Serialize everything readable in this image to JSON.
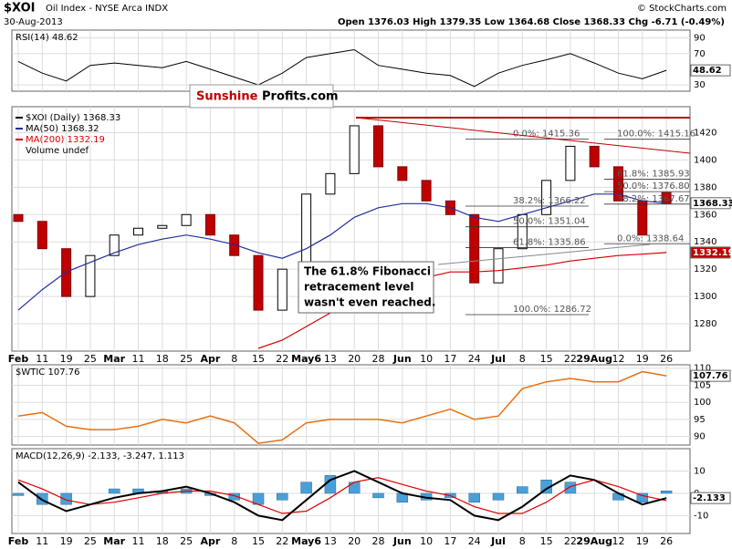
{
  "header": {
    "symbol": "$XOI",
    "name": "Oil Index - NYSE Arca INDX",
    "date": "30-Aug-2013",
    "quote": "Open 1376.03  High 1379.35  Low 1364.68  Close 1368.33  Chg -6.71 (-0.49%)",
    "credit": "© StockCharts.com",
    "logo_left": "Sunshine",
    "logo_right": "Profits.com",
    "annotation": [
      "The 61.8% Fibonacci",
      "retracement level",
      "wasn't even reached."
    ]
  },
  "chart_data": [
    {
      "type": "line",
      "title": "RSI(14) 48.62",
      "categories": [
        "Feb",
        "11",
        "19",
        "25",
        "Mar",
        "11",
        "18",
        "25",
        "Apr",
        "8",
        "15",
        "22",
        "May6",
        "13",
        "20",
        "28",
        "Jun",
        "10",
        "17",
        "24",
        "Jul",
        "8",
        "15",
        "22",
        "29Aug",
        "12",
        "19",
        "26"
      ],
      "values": [
        60,
        45,
        35,
        55,
        58,
        55,
        52,
        60,
        50,
        40,
        30,
        45,
        65,
        70,
        75,
        55,
        50,
        45,
        42,
        28,
        45,
        55,
        62,
        70,
        58,
        45,
        38,
        48.62
      ],
      "color": "#000000",
      "ylim": [
        22,
        100
      ],
      "yticks": [
        30,
        70,
        90
      ]
    },
    {
      "type": "candlestick",
      "categories": [
        "Feb",
        "11",
        "19",
        "25",
        "Mar",
        "11",
        "18",
        "25",
        "Apr",
        "8",
        "15",
        "22",
        "May6",
        "13",
        "20",
        "28",
        "Jun",
        "10",
        "17",
        "24",
        "Jul",
        "8",
        "15",
        "22",
        "29Aug",
        "12",
        "19",
        "26"
      ],
      "series": [
        {
          "name": "$XOI (Daily) 1368.33",
          "color": "#000000",
          "open": [
            1360,
            1355,
            1335,
            1300,
            1330,
            1345,
            1350,
            1352,
            1360,
            1345,
            1330,
            1290,
            1320,
            1375,
            1390,
            1425,
            1395,
            1385,
            1370,
            1360,
            1310,
            1335,
            1360,
            1385,
            1410,
            1395,
            1370,
            1376.03
          ],
          "close": [
            1355,
            1335,
            1300,
            1330,
            1345,
            1350,
            1352,
            1360,
            1345,
            1330,
            1290,
            1320,
            1375,
            1390,
            1425,
            1395,
            1385,
            1370,
            1360,
            1310,
            1335,
            1360,
            1385,
            1410,
            1395,
            1370,
            1345,
            1368.33
          ]
        },
        {
          "name": "MA(50) 1368.32",
          "color": "#1f2f9f",
          "values": [
            1290,
            1305,
            1318,
            1325,
            1332,
            1338,
            1342,
            1345,
            1342,
            1338,
            1332,
            1328,
            1335,
            1345,
            1358,
            1365,
            1368,
            1368,
            1365,
            1358,
            1355,
            1360,
            1365,
            1370,
            1375,
            1375,
            1370,
            1368.32
          ]
        },
        {
          "name": "MA(200) 1332.19",
          "color": "#d40000",
          "values": [
            null,
            null,
            null,
            null,
            null,
            null,
            null,
            null,
            null,
            null,
            1262,
            1268,
            1278,
            1288,
            1298,
            1305,
            1310,
            1314,
            1318,
            1318,
            1319,
            1321,
            1323,
            1326,
            1328,
            1330,
            1331,
            1332.19
          ]
        }
      ],
      "note": "Volume undef",
      "fib_left": [
        {
          "label": "0.0%: 1415.36",
          "value": 1415.36
        },
        {
          "label": "38.2%: 1366.22",
          "value": 1366.22
        },
        {
          "label": "50.0%: 1351.04",
          "value": 1351.04
        },
        {
          "label": "61.8%: 1335.86",
          "value": 1335.86
        },
        {
          "label": "100.0%: 1286.72",
          "value": 1286.72
        }
      ],
      "fib_right": [
        {
          "label": "100.0%: 1415.16",
          "value": 1415.16
        },
        {
          "label": "61.8%: 1385.93",
          "value": 1385.93
        },
        {
          "label": "50.0%: 1376.80",
          "value": 1376.8
        },
        {
          "label": "38.2%: 1367.67",
          "value": 1367.67
        },
        {
          "label": "0.0%: 1338.64",
          "value": 1338.64
        }
      ],
      "ylim": [
        1260,
        1439
      ],
      "yticks": [
        1280,
        1300,
        1320,
        1340,
        1360,
        1380,
        1400,
        1420
      ]
    },
    {
      "type": "line",
      "title": "$WTIC 107.76",
      "categories": [
        "Feb",
        "11",
        "19",
        "25",
        "Mar",
        "11",
        "18",
        "25",
        "Apr",
        "8",
        "15",
        "22",
        "May6",
        "13",
        "20",
        "28",
        "Jun",
        "10",
        "17",
        "24",
        "Jul",
        "8",
        "15",
        "22",
        "29Aug",
        "12",
        "19",
        "26"
      ],
      "values": [
        96,
        97,
        93,
        92,
        92,
        93,
        95,
        94,
        96,
        94,
        88,
        89,
        94,
        95,
        95,
        95,
        94,
        96,
        98,
        95,
        96,
        104,
        106,
        107,
        106,
        106,
        109,
        107.76
      ],
      "color": "#e87010",
      "ylim": [
        87.5,
        111
      ],
      "yticks": [
        90,
        95,
        100,
        105,
        110
      ]
    },
    {
      "type": "macd",
      "title": "MACD(12,26,9) -2.133, -3.247, 1.113",
      "categories": [
        "Feb",
        "11",
        "19",
        "25",
        "Mar",
        "11",
        "18",
        "25",
        "Apr",
        "8",
        "15",
        "22",
        "May6",
        "13",
        "20",
        "28",
        "Jun",
        "10",
        "17",
        "24",
        "Jul",
        "8",
        "15",
        "22",
        "29Aug",
        "12",
        "19",
        "26"
      ],
      "series": [
        {
          "name": "MACD",
          "color": "#000000",
          "values": [
            5,
            -3,
            -8,
            -5,
            -2,
            0,
            1,
            3,
            0,
            -4,
            -10,
            -12,
            -3,
            6,
            10,
            5,
            0,
            -2,
            -3,
            -10,
            -12,
            -6,
            2,
            8,
            6,
            0,
            -5,
            -2.133
          ]
        },
        {
          "name": "Signal",
          "color": "#e00000",
          "values": [
            6,
            2,
            -3,
            -5,
            -4,
            -2,
            0,
            1,
            1,
            -1,
            -5,
            -9,
            -8,
            -2,
            5,
            7,
            4,
            1,
            -1,
            -6,
            -9,
            -9,
            -4,
            3,
            6,
            3,
            -1,
            -3.247
          ]
        },
        {
          "name": "Histogram",
          "color": "#4a9fd8",
          "values": [
            -1,
            -5,
            -5,
            0,
            2,
            2,
            1,
            2,
            -1,
            -3,
            -5,
            -3,
            5,
            8,
            5,
            -2,
            -4,
            -3,
            -2,
            -4,
            -3,
            3,
            6,
            5,
            0,
            -3,
            -4,
            1.113
          ]
        }
      ],
      "ylim": [
        -18,
        20
      ],
      "yticks": [
        -10,
        0,
        10
      ]
    }
  ]
}
